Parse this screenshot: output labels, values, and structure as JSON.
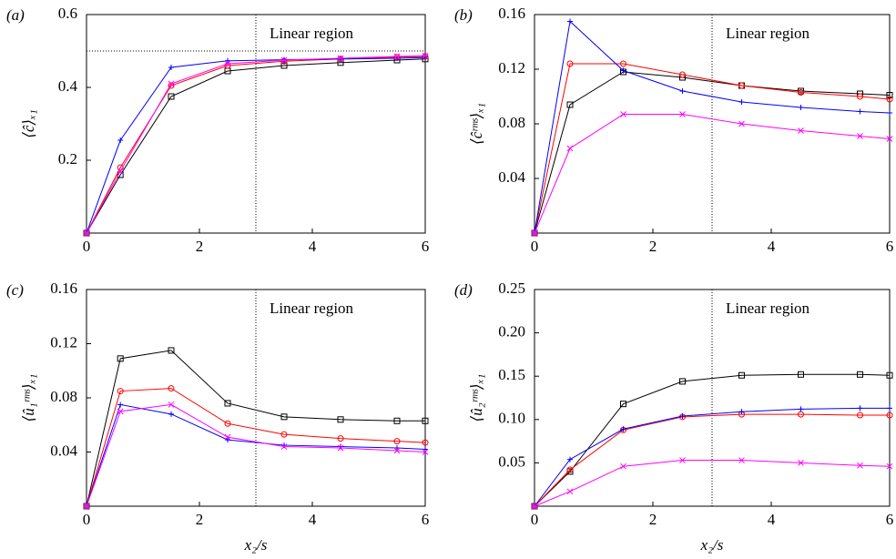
{
  "chart_data": [
    {
      "type": "line",
      "panel": "(a)",
      "ylabel": "⟨ĉ⟩ₓ₁",
      "annotation": "Linear region",
      "vline": 3,
      "hline": 0.5,
      "x": [
        0,
        0.6,
        1.5,
        2.5,
        3.5,
        4.5,
        5.5,
        6
      ],
      "xlim": [
        0,
        6
      ],
      "xticks": [
        0,
        2,
        4,
        6
      ],
      "ylim": [
        0,
        0.6
      ],
      "yticks": [
        0.2,
        0.4,
        0.6
      ],
      "series": [
        {
          "color": "#000000",
          "marker": "square",
          "values": [
            0,
            0.16,
            0.375,
            0.445,
            0.46,
            0.468,
            0.475,
            0.478
          ]
        },
        {
          "color": "#ff0000",
          "marker": "circle",
          "values": [
            0,
            0.18,
            0.405,
            0.46,
            0.472,
            0.478,
            0.483,
            0.485
          ]
        },
        {
          "color": "#0000ff",
          "marker": "plus",
          "values": [
            0,
            0.255,
            0.455,
            0.473,
            0.476,
            0.478,
            0.48,
            0.482
          ]
        },
        {
          "color": "#ff00ff",
          "marker": "cross",
          "values": [
            0,
            0.17,
            0.41,
            0.465,
            0.475,
            0.48,
            0.485,
            0.487
          ]
        }
      ]
    },
    {
      "type": "line",
      "panel": "(b)",
      "ylabel": "⟨ĉʳᵐˢ⟩ₓ₁",
      "annotation": "Linear region",
      "vline": 3,
      "x": [
        0,
        0.6,
        1.5,
        2.5,
        3.5,
        4.5,
        5.5,
        6
      ],
      "xlim": [
        0,
        6
      ],
      "xticks": [
        0,
        2,
        4,
        6
      ],
      "ylim": [
        0,
        0.16
      ],
      "yticks": [
        0.04,
        0.08,
        0.12,
        0.16
      ],
      "series": [
        {
          "color": "#000000",
          "marker": "square",
          "values": [
            0,
            0.094,
            0.118,
            0.114,
            0.108,
            0.104,
            0.102,
            0.101
          ]
        },
        {
          "color": "#ff0000",
          "marker": "circle",
          "values": [
            0,
            0.124,
            0.124,
            0.116,
            0.108,
            0.103,
            0.1,
            0.098
          ]
        },
        {
          "color": "#0000ff",
          "marker": "plus",
          "values": [
            0,
            0.155,
            0.119,
            0.104,
            0.096,
            0.092,
            0.089,
            0.088
          ]
        },
        {
          "color": "#ff00ff",
          "marker": "cross",
          "values": [
            0,
            0.062,
            0.087,
            0.087,
            0.08,
            0.075,
            0.071,
            0.069
          ]
        }
      ]
    },
    {
      "type": "line",
      "panel": "(c)",
      "ylabel": "⟨û₁ʳᵐˢ⟩ₓ₁",
      "xlabel": "x₂/s",
      "annotation": "Linear region",
      "vline": 3,
      "x": [
        0,
        0.6,
        1.5,
        2.5,
        3.5,
        4.5,
        5.5,
        6
      ],
      "xlim": [
        0,
        6
      ],
      "xticks": [
        0,
        2,
        4,
        6
      ],
      "ylim": [
        0,
        0.16
      ],
      "yticks": [
        0.04,
        0.08,
        0.12,
        0.16
      ],
      "series": [
        {
          "color": "#000000",
          "marker": "square",
          "values": [
            0,
            0.109,
            0.115,
            0.076,
            0.066,
            0.064,
            0.063,
            0.063
          ]
        },
        {
          "color": "#ff0000",
          "marker": "circle",
          "values": [
            0,
            0.085,
            0.087,
            0.061,
            0.053,
            0.05,
            0.048,
            0.047
          ]
        },
        {
          "color": "#0000ff",
          "marker": "plus",
          "values": [
            0,
            0.075,
            0.068,
            0.049,
            0.045,
            0.044,
            0.043,
            0.042
          ]
        },
        {
          "color": "#ff00ff",
          "marker": "cross",
          "values": [
            0,
            0.07,
            0.075,
            0.051,
            0.044,
            0.043,
            0.041,
            0.04
          ]
        }
      ]
    },
    {
      "type": "line",
      "panel": "(d)",
      "ylabel": "⟨û₂ʳᵐˢ⟩ₓ₁",
      "xlabel": "x₂/s",
      "annotation": "Linear region",
      "vline": 3,
      "x": [
        0,
        0.6,
        1.5,
        2.5,
        3.5,
        4.5,
        5.5,
        6
      ],
      "xlim": [
        0,
        6
      ],
      "xticks": [
        0,
        2,
        4,
        6
      ],
      "ylim": [
        0,
        0.25
      ],
      "yticks": [
        0.05,
        {
          "value": 0.1,
          "label": "0.10"
        },
        0.15,
        {
          "value": 0.2,
          "label": "0.20"
        },
        0.25
      ],
      "series": [
        {
          "color": "#000000",
          "marker": "square",
          "values": [
            0,
            0.04,
            0.118,
            0.144,
            0.151,
            0.152,
            0.152,
            0.151
          ]
        },
        {
          "color": "#ff0000",
          "marker": "circle",
          "values": [
            0,
            0.042,
            0.088,
            0.103,
            0.106,
            0.106,
            0.105,
            0.105
          ]
        },
        {
          "color": "#0000ff",
          "marker": "plus",
          "values": [
            0,
            0.054,
            0.089,
            0.104,
            0.109,
            0.112,
            0.113,
            0.113
          ]
        },
        {
          "color": "#ff00ff",
          "marker": "cross",
          "values": [
            0,
            0.017,
            0.046,
            0.053,
            0.053,
            0.05,
            0.047,
            0.046
          ]
        }
      ]
    }
  ]
}
